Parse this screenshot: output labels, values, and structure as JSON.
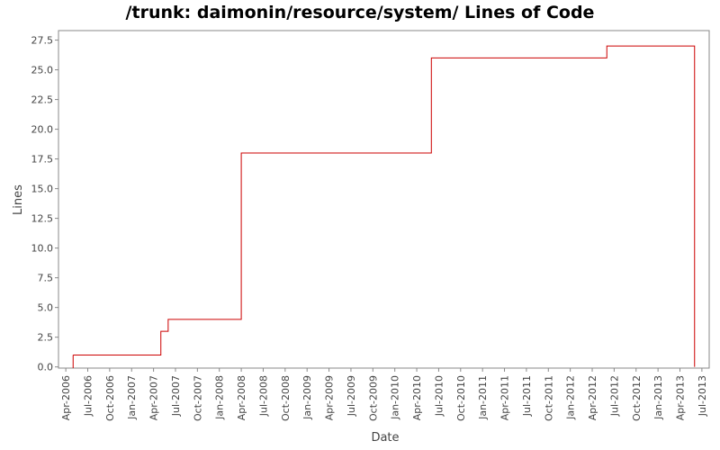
{
  "chart_data": {
    "type": "step",
    "title": "/trunk: daimonin/resource/system/ Lines of Code",
    "x_label": "Date",
    "y_label": "Lines",
    "series": [
      {
        "name": "Lines",
        "color": "#cc0000",
        "x": [
          "2006-05",
          "2007-05",
          "2007-06",
          "2008-04",
          "2010-06",
          "2012-06",
          "2013-06"
        ],
        "values": [
          1,
          3,
          4,
          18,
          26,
          27,
          0
        ]
      }
    ],
    "xlim": [
      "2006-03",
      "2013-08"
    ],
    "xticks": [
      {
        "value": "2006-04",
        "label": "Apr-2006"
      },
      {
        "value": "2006-07",
        "label": "Jul-2006"
      },
      {
        "value": "2006-10",
        "label": "Oct-2006"
      },
      {
        "value": "2007-01",
        "label": "Jan-2007"
      },
      {
        "value": "2007-04",
        "label": "Apr-2007"
      },
      {
        "value": "2007-07",
        "label": "Jul-2007"
      },
      {
        "value": "2007-10",
        "label": "Oct-2007"
      },
      {
        "value": "2008-01",
        "label": "Jan-2008"
      },
      {
        "value": "2008-04",
        "label": "Apr-2008"
      },
      {
        "value": "2008-07",
        "label": "Jul-2008"
      },
      {
        "value": "2008-10",
        "label": "Oct-2008"
      },
      {
        "value": "2009-01",
        "label": "Jan-2009"
      },
      {
        "value": "2009-04",
        "label": "Apr-2009"
      },
      {
        "value": "2009-07",
        "label": "Jul-2009"
      },
      {
        "value": "2009-10",
        "label": "Oct-2009"
      },
      {
        "value": "2010-01",
        "label": "Jan-2010"
      },
      {
        "value": "2010-04",
        "label": "Apr-2010"
      },
      {
        "value": "2010-07",
        "label": "Jul-2010"
      },
      {
        "value": "2010-10",
        "label": "Oct-2010"
      },
      {
        "value": "2011-01",
        "label": "Jan-2011"
      },
      {
        "value": "2011-04",
        "label": "Apr-2011"
      },
      {
        "value": "2011-07",
        "label": "Jul-2011"
      },
      {
        "value": "2011-10",
        "label": "Oct-2011"
      },
      {
        "value": "2012-01",
        "label": "Jan-2012"
      },
      {
        "value": "2012-04",
        "label": "Apr-2012"
      },
      {
        "value": "2012-07",
        "label": "Jul-2012"
      },
      {
        "value": "2012-10",
        "label": "Oct-2012"
      },
      {
        "value": "2013-01",
        "label": "Jan-2013"
      },
      {
        "value": "2013-04",
        "label": "Apr-2013"
      },
      {
        "value": "2013-07",
        "label": "Jul-2013"
      }
    ],
    "ylim": [
      -0.1,
      28.3
    ],
    "yticks": [
      {
        "value": 0,
        "label": "0.0"
      },
      2.5,
      {
        "value": 5,
        "label": "5.0"
      },
      7.5,
      {
        "value": 10,
        "label": "10.0"
      },
      12.5,
      {
        "value": 15,
        "label": "15.0"
      },
      17.5,
      {
        "value": 20,
        "label": "20.0"
      },
      22.5,
      {
        "value": 25,
        "label": "25.0"
      },
      27.5
    ]
  }
}
